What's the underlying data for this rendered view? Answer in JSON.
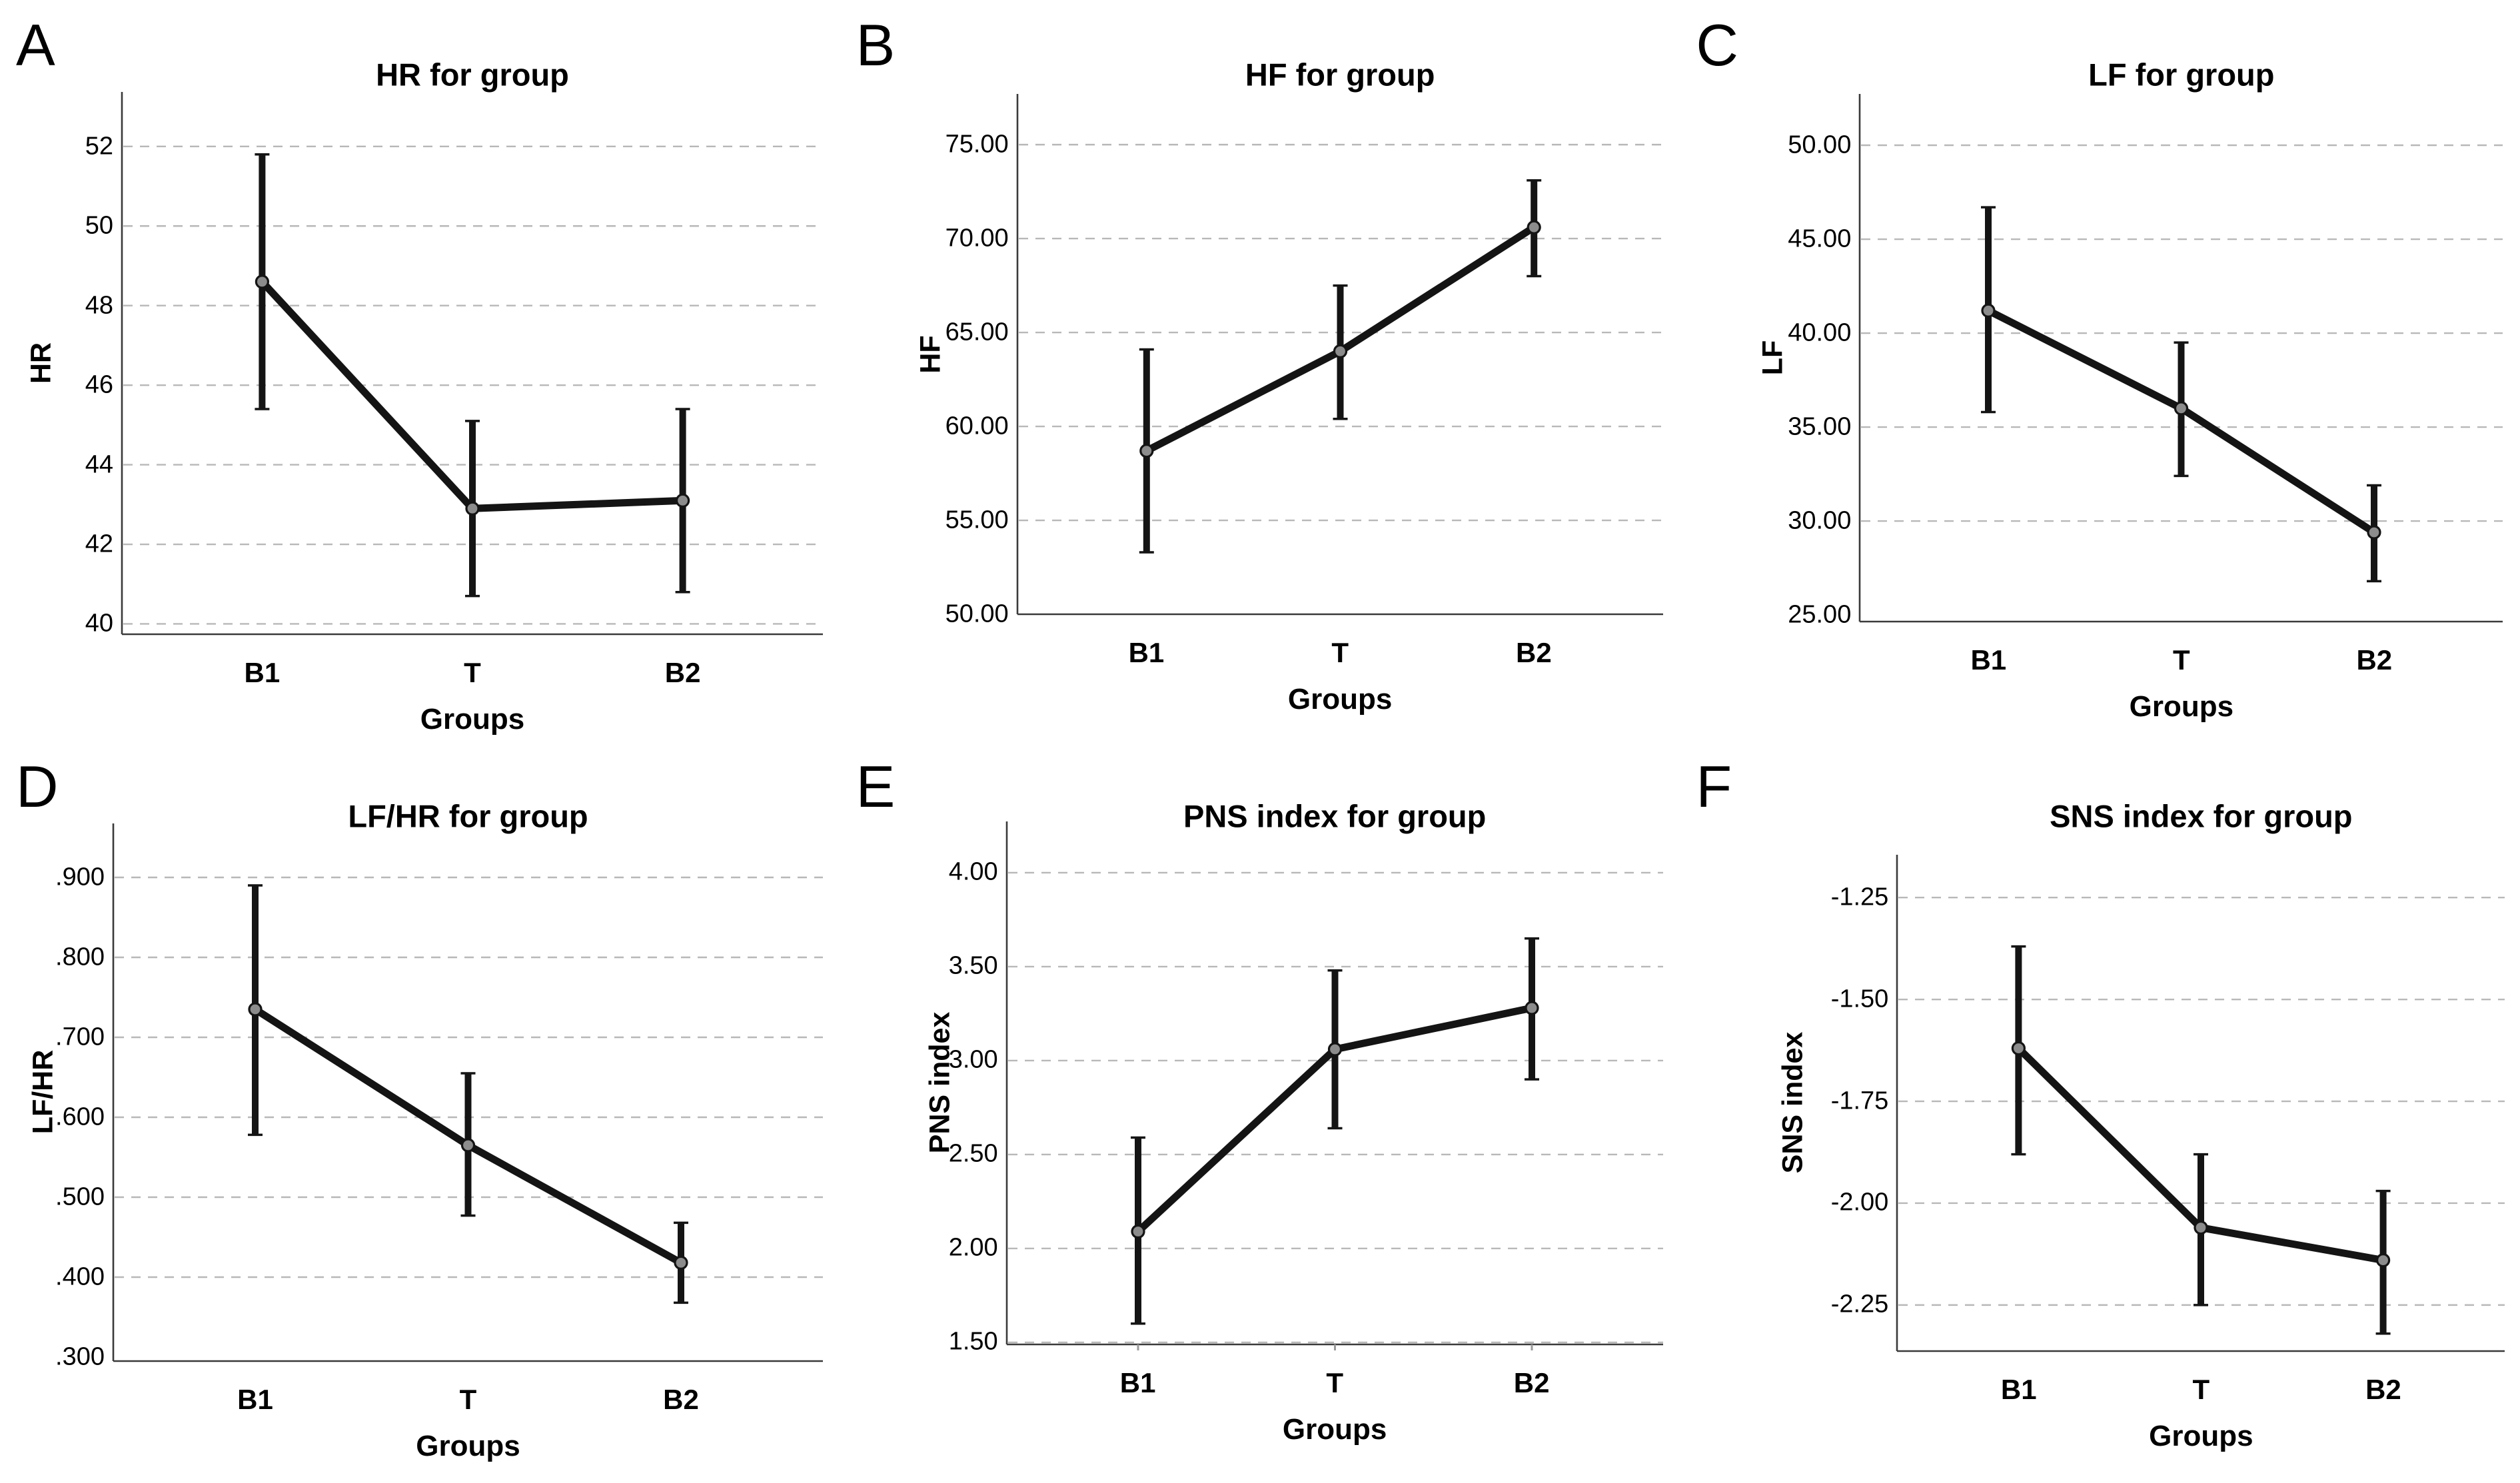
{
  "colors": {
    "background": "#ffffff",
    "text": "#000000",
    "data_line": "#141414",
    "error_bar": "#141414",
    "marker_fill": "#8c8c8c",
    "marker_stroke": "#141414",
    "gridline": "#b8b8b8",
    "axis_line": "#3a3a3a"
  },
  "chart_data": [
    {
      "letter": "A",
      "type": "line",
      "title": "HR for group",
      "xlabel": "Groups",
      "ylabel": "HR",
      "categories": [
        "B1",
        "T",
        "B2"
      ],
      "series": [
        {
          "name": "mean HR",
          "values": [
            48.6,
            42.9,
            43.1
          ]
        }
      ],
      "error_low": [
        45.4,
        40.7,
        40.8
      ],
      "error_high": [
        51.8,
        45.1,
        45.4
      ],
      "ytick_values": [
        40,
        42,
        44,
        46,
        48,
        50,
        52
      ],
      "ytick_labels": [
        "40",
        "42",
        "44",
        "46",
        "48",
        "50",
        "52"
      ],
      "ylim": [
        39.74,
        53.37
      ],
      "grid": "dashed-horizontal",
      "legend": "none"
    },
    {
      "letter": "B",
      "type": "line",
      "title": "HF for group",
      "xlabel": "Groups",
      "ylabel": "HF",
      "categories": [
        "B1",
        "T",
        "B2"
      ],
      "series": [
        {
          "name": "mean HF",
          "values": [
            58.7,
            64.0,
            70.6
          ]
        }
      ],
      "error_low": [
        53.3,
        60.4,
        68.0
      ],
      "error_high": [
        64.1,
        67.5,
        73.1
      ],
      "ytick_values": [
        50,
        55,
        60,
        65,
        70,
        75
      ],
      "ytick_labels": [
        "50.00",
        "55.00",
        "60.00",
        "65.00",
        "70.00",
        "75.00"
      ],
      "ylim": [
        50.0,
        77.7
      ],
      "grid": "dashed-horizontal",
      "legend": "none"
    },
    {
      "letter": "C",
      "type": "line",
      "title": "LF for group",
      "xlabel": "Groups",
      "ylabel": "LF",
      "categories": [
        "B1",
        "T",
        "B2"
      ],
      "series": [
        {
          "name": "mean LF",
          "values": [
            41.2,
            36.0,
            29.4
          ]
        }
      ],
      "error_low": [
        35.8,
        32.4,
        26.8
      ],
      "error_high": [
        46.7,
        39.5,
        31.9
      ],
      "ytick_values": [
        25,
        30,
        35,
        40,
        45,
        50
      ],
      "ytick_labels": [
        "25.00",
        "30.00",
        "35.00",
        "40.00",
        "45.00",
        "50.00"
      ],
      "ylim": [
        24.65,
        52.73
      ],
      "grid": "dashed-horizontal",
      "legend": "none"
    },
    {
      "letter": "D",
      "type": "line",
      "title": "LF/HR for group",
      "xlabel": "Groups",
      "ylabel": "LF/HR",
      "categories": [
        "B1",
        "T",
        "B2"
      ],
      "series": [
        {
          "name": "mean LF/HR",
          "values": [
            0.735,
            0.565,
            0.418
          ]
        }
      ],
      "error_low": [
        0.578,
        0.477,
        0.368
      ],
      "error_high": [
        0.89,
        0.655,
        0.468
      ],
      "ytick_values": [
        0.3,
        0.4,
        0.5,
        0.6,
        0.7,
        0.8,
        0.9
      ],
      "ytick_labels": [
        ".300",
        ".400",
        ".500",
        ".600",
        ".700",
        ".800",
        ".900"
      ],
      "ylim": [
        0.295,
        0.9675
      ],
      "grid": "dashed-horizontal",
      "legend": "none"
    },
    {
      "letter": "E",
      "type": "line",
      "title": "PNS index for group",
      "xlabel": "Groups",
      "ylabel": "PNS index",
      "categories": [
        "B1",
        "T",
        "B2"
      ],
      "series": [
        {
          "name": "mean PNS index",
          "values": [
            2.09,
            3.06,
            3.28
          ]
        }
      ],
      "error_low": [
        1.6,
        2.64,
        2.9
      ],
      "error_high": [
        2.59,
        3.48,
        3.65
      ],
      "ytick_values": [
        1.5,
        2.0,
        2.5,
        3.0,
        3.5,
        4.0
      ],
      "ytick_labels": [
        "1.50",
        "2.00",
        "2.50",
        "3.00",
        "3.50",
        "4.00"
      ],
      "ylim": [
        1.489,
        4.273
      ],
      "grid": "dashed-horizontal",
      "baseline_gridline": true,
      "x_tick_marks": true,
      "legend": "none"
    },
    {
      "letter": "F",
      "type": "line",
      "title": "SNS index for group",
      "xlabel": "Groups",
      "ylabel": "SNS index",
      "categories": [
        "B1",
        "T",
        "B2"
      ],
      "series": [
        {
          "name": "mean SNS index",
          "values": [
            -1.62,
            -2.06,
            -2.14
          ]
        }
      ],
      "error_low": [
        -1.88,
        -2.25,
        -2.32
      ],
      "error_high": [
        -1.37,
        -1.88,
        -1.97
      ],
      "ytick_values": [
        -2.25,
        -2.0,
        -1.75,
        -1.5,
        -1.25
      ],
      "ytick_labels": [
        "-2.25",
        "-2.00",
        "-1.75",
        "-1.50",
        "-1.25"
      ],
      "ylim": [
        -2.363,
        -1.145
      ],
      "grid": "dashed-horizontal",
      "legend": "none"
    }
  ]
}
